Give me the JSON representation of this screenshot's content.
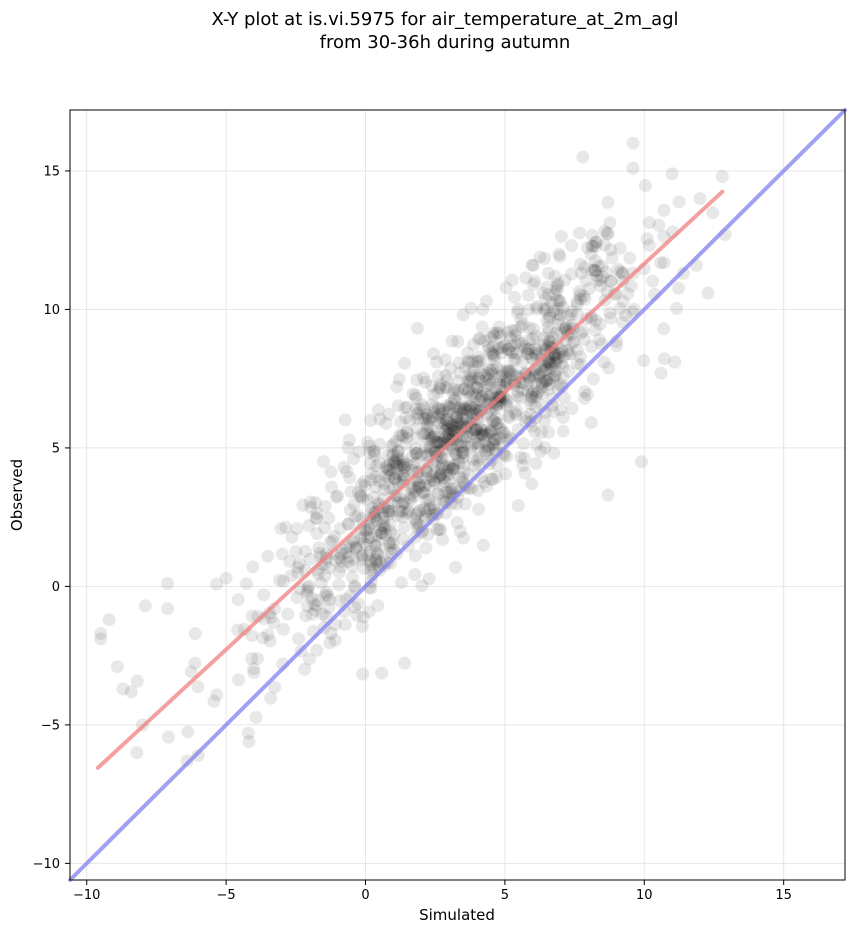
{
  "chart_data": {
    "type": "scatter",
    "title": "X-Y plot at is.vi.5975 for air_temperature_at_2m_agl",
    "subtitle": "from 30-36h during autumn",
    "xlabel": "Simulated",
    "ylabel": "Observed",
    "xlim": [
      -10.6,
      17.2
    ],
    "ylim": [
      -10.6,
      17.2
    ],
    "xticks": [
      -10,
      -5,
      0,
      5,
      10,
      15
    ],
    "yticks": [
      -10,
      -5,
      0,
      5,
      10,
      15
    ],
    "xtick_labels": [
      "−10",
      "−5",
      "0",
      "5",
      "10",
      "15"
    ],
    "ytick_labels": [
      "−10",
      "−5",
      "0",
      "5",
      "10",
      "15"
    ],
    "grid": true,
    "colors": {
      "points": "#000000",
      "regression_line": "#f08080",
      "identity_line": "#8080f0",
      "grid": "#e6e6e6"
    },
    "regression_line": {
      "x": [
        -9.6,
        12.8
      ],
      "y": [
        -6.55,
        14.25
      ]
    },
    "identity_line": {
      "x": [
        -10.6,
        17.2
      ],
      "y": [
        -10.6,
        17.2
      ]
    },
    "point_cloud": {
      "note_points_approx": true,
      "slope": 0.93,
      "intercept": 2.35,
      "x_range": [
        -9.6,
        12.9
      ],
      "residual_sd": 1.6
    },
    "outlier_points": {
      "x": [
        -9.5,
        -9.5,
        -9.2,
        -8.9,
        -8.7,
        -8.4,
        -8.2,
        -8.0,
        -7.9,
        -7.1,
        -7.1,
        -6.4,
        -6.0,
        -5.0,
        -4.2,
        9.6,
        9.9,
        10.6,
        10.7,
        11.1,
        11.4,
        12.9,
        12.8,
        8.7,
        7.8,
        9.6,
        11.0,
        12.0
      ],
      "y": [
        -1.7,
        -1.9,
        -1.2,
        -2.9,
        -3.7,
        -3.8,
        -6.0,
        -5.0,
        -0.7,
        0.1,
        -0.8,
        -6.3,
        -6.1,
        0.3,
        -5.3,
        16.0,
        4.5,
        7.7,
        9.3,
        8.1,
        11.3,
        12.7,
        14.8,
        3.3,
        15.5,
        15.1,
        14.9,
        14.0
      ]
    }
  }
}
